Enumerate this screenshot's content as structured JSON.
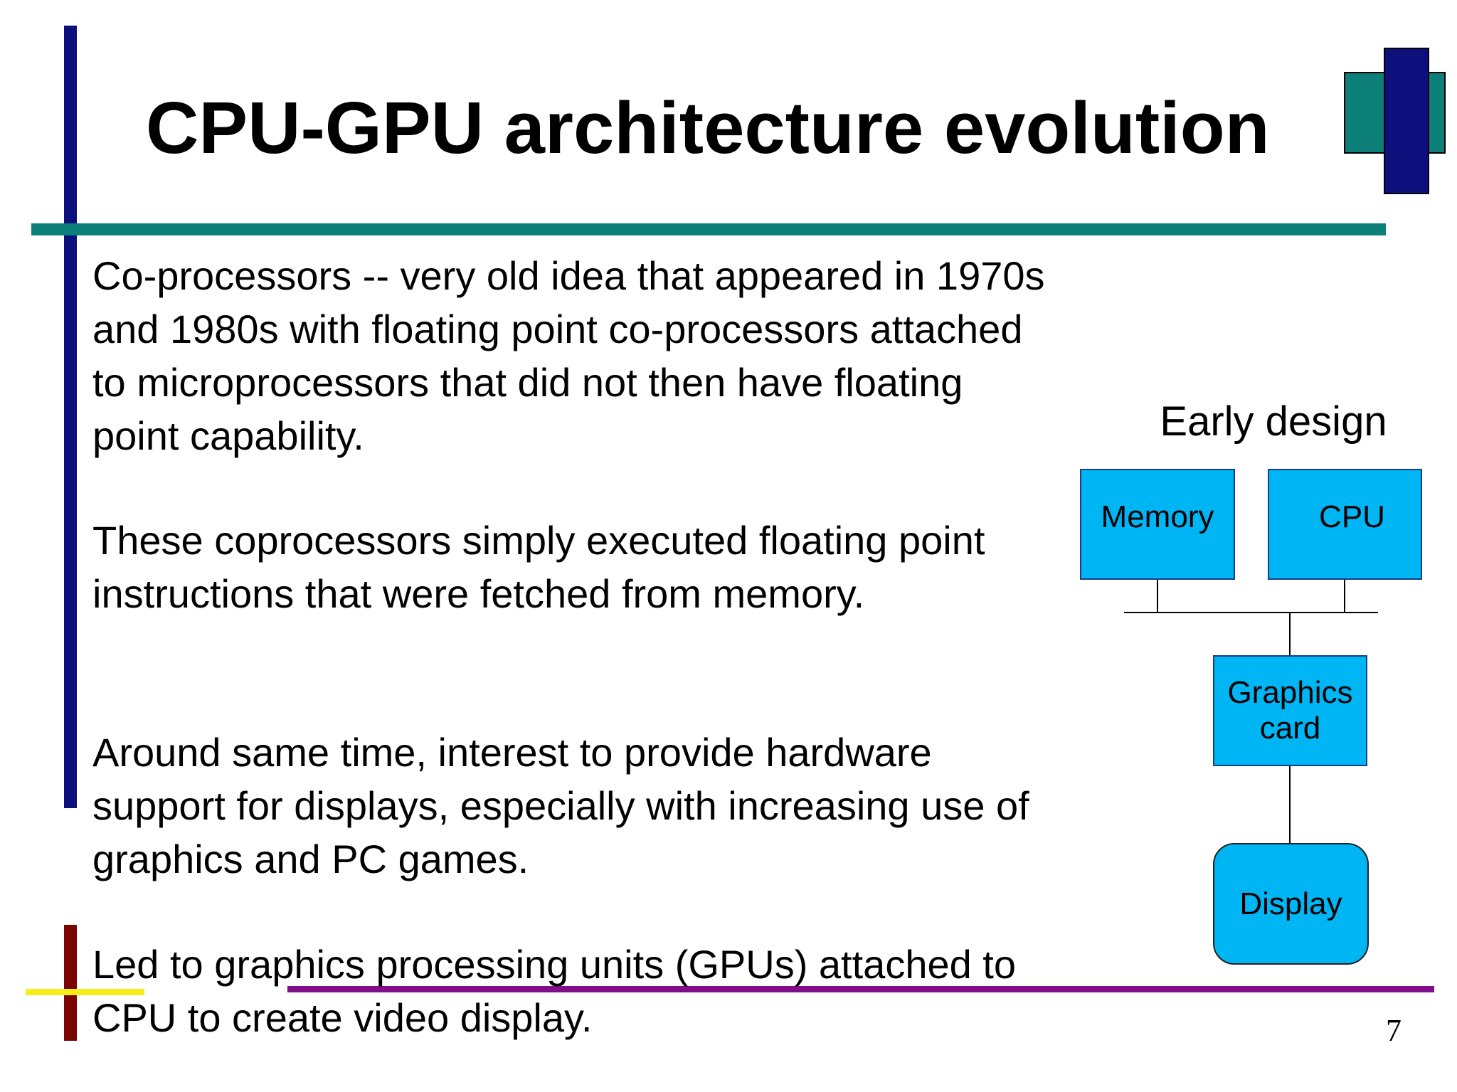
{
  "slide": {
    "title": "CPU-GPU architecture evolution",
    "paragraphs": [
      "Co-processors -- very old idea that appeared in 1970s and 1980s with floating point co-processors attached to microprocessors that did not then have floating point capability.",
      "These coprocessors simply executed floating point instructions that were fetched from memory.",
      "Around same time, interest to provide hardware support  for displays, especially with increasing use of graphics and PC games.",
      "Led to graphics processing units (GPUs) attached to CPU to create video display."
    ],
    "page_number": "7"
  },
  "diagram": {
    "caption": "Early design",
    "boxes": {
      "memory": "Memory",
      "cpu": "CPU",
      "graphics_line1": "Graphics",
      "graphics_line2": "card",
      "display": "Display"
    }
  },
  "colors": {
    "navy": "#0d0f7d",
    "teal": "#0d8079",
    "maroon": "#7a0404",
    "yellow": "#f5ee1a",
    "purple": "#7f0e88",
    "box_fill": "#00b5f4"
  }
}
